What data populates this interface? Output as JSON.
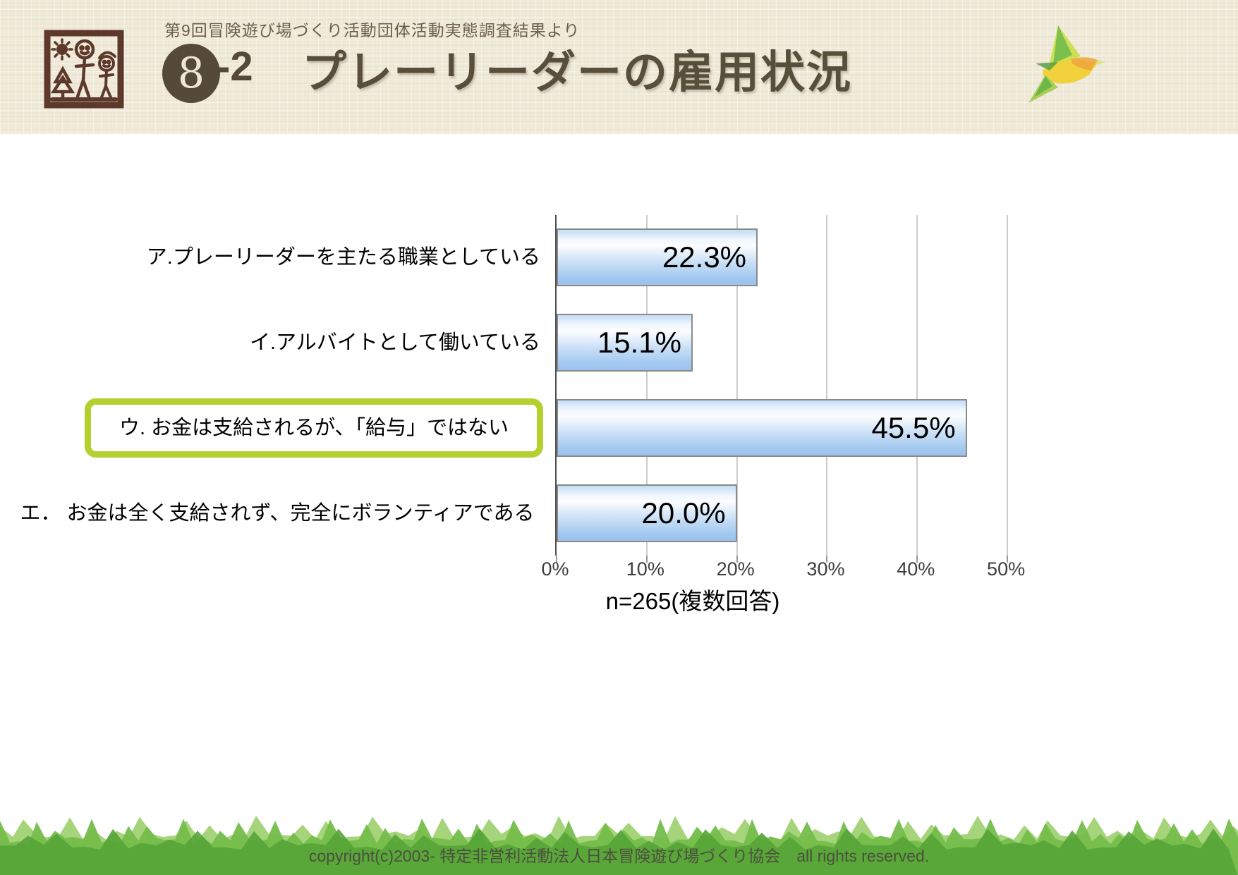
{
  "header": {
    "survey_source": "第9回冒険遊び場づくり活動団体活動実態調査結果より",
    "section_number": "8",
    "section_suffix": "-2",
    "title": "プレーリーダーの雇用状況"
  },
  "chart_data": {
    "type": "bar",
    "orientation": "horizontal",
    "title": "プレーリーダーの雇用状況",
    "categories": [
      "ア.プレーリーダーを主たる職業としている",
      "イ.アルバイトとして働いている",
      "ウ. お金は支給されるが、「給与」ではない",
      "エ． お金は全く支給されず、完全にボランティアである"
    ],
    "values": [
      22.3,
      15.1,
      45.5,
      20.0
    ],
    "value_labels": [
      "22.3%",
      "15.1%",
      "45.5%",
      "20.0%"
    ],
    "highlighted_index": 2,
    "x_tick_labels": [
      "0%",
      "10%",
      "20%",
      "30%",
      "40%",
      "50%"
    ],
    "x_tick_values": [
      0,
      10,
      20,
      30,
      40,
      50
    ],
    "xlim": [
      0,
      55
    ],
    "grid": true,
    "legend": "none",
    "note": "n=265(複数回答)",
    "colors": {
      "bar_top": "#c3dcf6",
      "bar_highlight_light": "#fbfdff",
      "bar_bottom": "#9bc2ed",
      "bar_border": "#8a8a8a",
      "gridline": "#cccccc",
      "axis": "#4d4d4d",
      "highlight_border": "#b3d02e"
    }
  },
  "icons": {
    "logo": "association-stamp-logo",
    "bird": "bird-illustration",
    "grass": "grass-illustration"
  },
  "footer": {
    "copyright": "copyright(c)2003- 特定非営利活動法人日本冒険遊び場づくり協会　all rights reserved."
  }
}
